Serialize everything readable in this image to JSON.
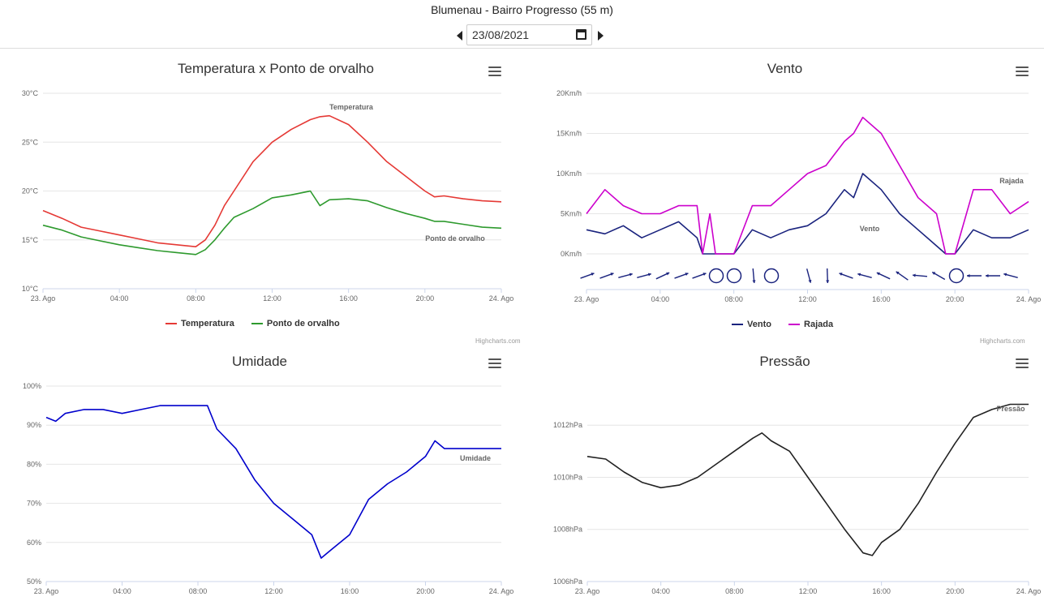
{
  "station": "Blumenau - Bairro Progresso (55 m)",
  "date": {
    "value": "23/08/2021"
  },
  "x_ticks": [
    "23. Ago",
    "04:00",
    "08:00",
    "12:00",
    "16:00",
    "20:00",
    "24. Ago"
  ],
  "credits": "Highcharts.com",
  "colors": {
    "temp": "#e53935",
    "dew": "#2e9a2e",
    "vento": "#1a237e",
    "rajada": "#cc00cc",
    "umidade": "#0000cc",
    "pressao": "#222222"
  },
  "charts": {
    "temp": {
      "title": "Temperatura x Ponto de orvalho",
      "y_ticks": [
        "30°C",
        "25°C",
        "20°C",
        "15°C",
        "10°C"
      ],
      "legend": [
        "Temperatura",
        "Ponto de orvalho"
      ]
    },
    "vento": {
      "title": "Vento",
      "y_ticks": [
        "20Km/h",
        "15Km/h",
        "10Km/h",
        "5Km/h",
        "0Km/h"
      ],
      "legend": [
        "Vento",
        "Rajada"
      ]
    },
    "umidade": {
      "title": "Umidade",
      "y_ticks": [
        "100%",
        "90%",
        "80%",
        "70%",
        "60%",
        "50%"
      ]
    },
    "pressao": {
      "title": "Pressão",
      "y_ticks": [
        "1012hPa",
        "1010hPa",
        "1008hPa",
        "1006hPa"
      ]
    }
  },
  "chart_data": [
    {
      "type": "line",
      "title": "Temperatura x Ponto de orvalho",
      "x": [
        0,
        1,
        2,
        3,
        4,
        5,
        6,
        7,
        8,
        8.5,
        9,
        9.5,
        10,
        11,
        12,
        13,
        14,
        14.5,
        15,
        16,
        17,
        18,
        19,
        20,
        20.5,
        21,
        22,
        23,
        24
      ],
      "series": [
        {
          "name": "Temperatura",
          "values": [
            18.0,
            17.2,
            16.3,
            15.9,
            15.5,
            15.1,
            14.7,
            14.5,
            14.3,
            15.0,
            16.5,
            18.5,
            20.0,
            23.0,
            25.0,
            26.3,
            27.3,
            27.6,
            27.7,
            26.8,
            25.0,
            23.0,
            21.5,
            20.0,
            19.4,
            19.5,
            19.2,
            19.0,
            18.9
          ]
        },
        {
          "name": "Ponto de orvalho",
          "values": [
            16.5,
            16.0,
            15.3,
            14.9,
            14.5,
            14.2,
            13.9,
            13.7,
            13.5,
            14.0,
            15.0,
            16.2,
            17.3,
            18.2,
            19.3,
            19.6,
            20.0,
            18.5,
            19.1,
            19.2,
            19.0,
            18.3,
            17.7,
            17.2,
            16.9,
            16.9,
            16.6,
            16.3,
            16.2
          ]
        }
      ],
      "xlabel": "",
      "ylabel": "",
      "ylim": [
        10,
        30
      ],
      "annotations": [
        "Temperatura",
        "Ponto de orvalho"
      ]
    },
    {
      "type": "line",
      "title": "Vento",
      "x": [
        0,
        1,
        2,
        3,
        4,
        5,
        6,
        6.3,
        6.7,
        7,
        8,
        9,
        10,
        11,
        12,
        13,
        14,
        14.5,
        15,
        16,
        17,
        18,
        19,
        19.5,
        20,
        21,
        22,
        23,
        24
      ],
      "series": [
        {
          "name": "Vento",
          "values": [
            3,
            2.5,
            3.5,
            2,
            3,
            4,
            2,
            0,
            0,
            0,
            0,
            3,
            2,
            3,
            3.5,
            5,
            8,
            7,
            10,
            8,
            5,
            3,
            1,
            0,
            0,
            3,
            2,
            2,
            3
          ]
        },
        {
          "name": "Rajada",
          "values": [
            5,
            8,
            6,
            5,
            5,
            6,
            6,
            0,
            5,
            0,
            0,
            6,
            6,
            8,
            10,
            11,
            14,
            15,
            17,
            15,
            11,
            7,
            5,
            0,
            0,
            8,
            8,
            5,
            6.5
          ]
        }
      ],
      "xlabel": "",
      "ylabel": "",
      "ylim": [
        0,
        20
      ],
      "annotations": [
        "Vento",
        "Rajada"
      ]
    },
    {
      "type": "line",
      "title": "Umidade",
      "x": [
        0,
        0.5,
        1,
        2,
        3,
        4,
        5,
        6,
        7,
        8,
        8.5,
        9,
        10,
        11,
        12,
        13,
        14,
        14.5,
        15,
        16,
        17,
        18,
        19,
        20,
        20.5,
        21,
        22,
        23,
        24
      ],
      "series": [
        {
          "name": "Umidade",
          "values": [
            92,
            91,
            93,
            94,
            94,
            93,
            94,
            95,
            95,
            95,
            95,
            89,
            84,
            76,
            70,
            66,
            62,
            56,
            58,
            62,
            71,
            75,
            78,
            82,
            86,
            84,
            84,
            84,
            84
          ]
        }
      ],
      "xlabel": "",
      "ylabel": "",
      "ylim": [
        50,
        100
      ],
      "annotations": [
        "Umidade"
      ]
    },
    {
      "type": "line",
      "title": "Pressão",
      "x": [
        0,
        1,
        2,
        3,
        4,
        5,
        6,
        7,
        8,
        9,
        9.5,
        10,
        11,
        12,
        13,
        14,
        15,
        15.5,
        16,
        17,
        18,
        19,
        20,
        21,
        22,
        23,
        24
      ],
      "series": [
        {
          "name": "Pressão",
          "values": [
            1010.8,
            1010.7,
            1010.2,
            1009.8,
            1009.6,
            1009.7,
            1010.0,
            1010.5,
            1011.0,
            1011.5,
            1011.7,
            1011.4,
            1011.0,
            1010.0,
            1009.0,
            1008.0,
            1007.1,
            1007.0,
            1007.5,
            1008.0,
            1009.0,
            1010.2,
            1011.3,
            1012.3,
            1012.6,
            1012.8,
            1012.8
          ]
        }
      ],
      "xlabel": "",
      "ylabel": "",
      "ylim": [
        1006,
        1013.5
      ],
      "annotations": [
        "Pressão"
      ]
    }
  ]
}
